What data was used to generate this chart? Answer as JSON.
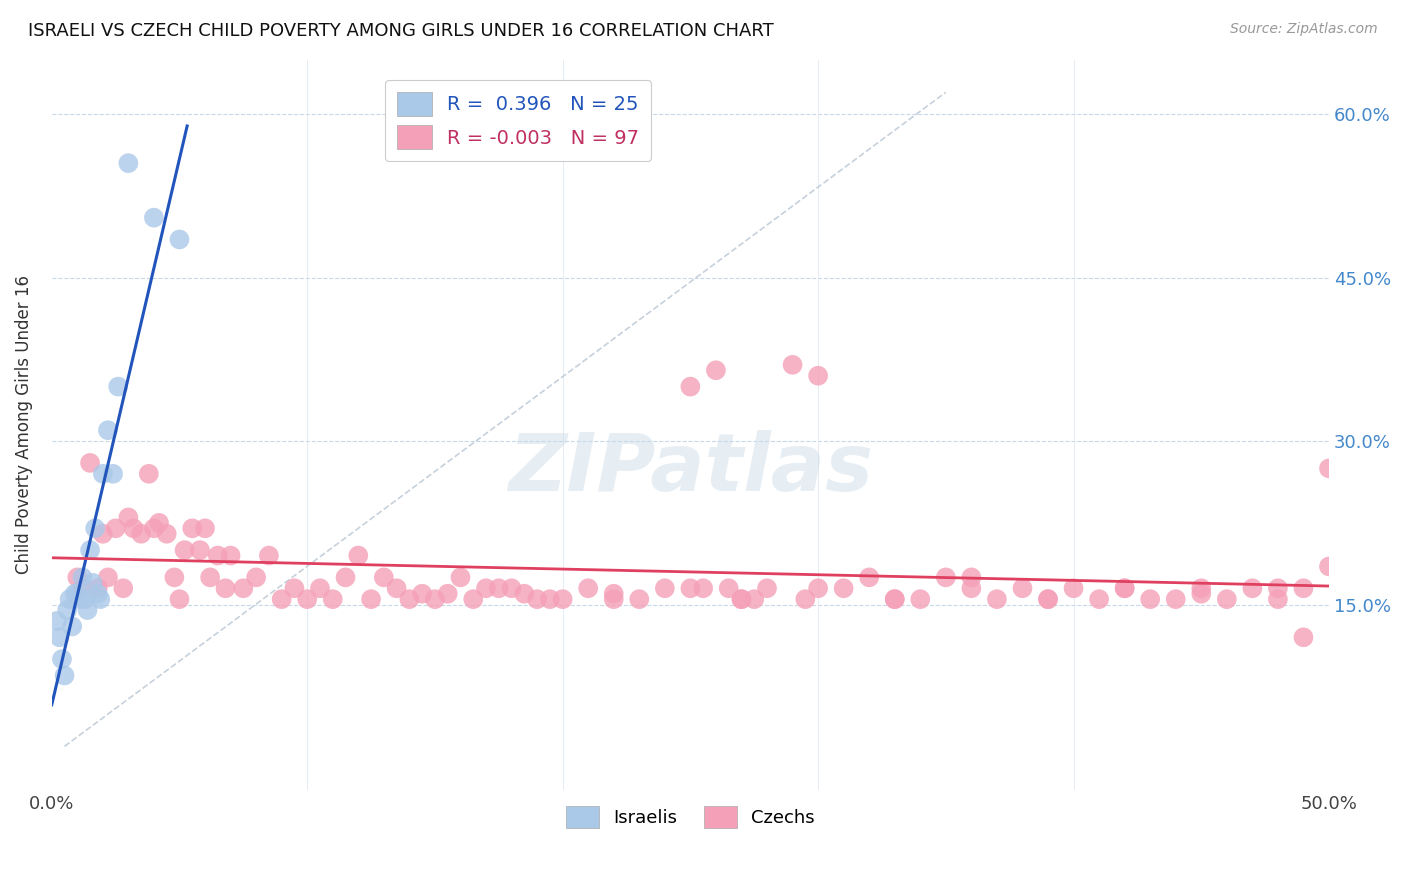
{
  "title": "ISRAELI VS CZECH CHILD POVERTY AMONG GIRLS UNDER 16 CORRELATION CHART",
  "source": "Source: ZipAtlas.com",
  "ylabel": "Child Poverty Among Girls Under 16",
  "xlim": [
    0.0,
    0.5
  ],
  "ylim": [
    -0.02,
    0.65
  ],
  "plot_ylim": [
    0.0,
    0.65
  ],
  "israeli_R": 0.396,
  "israeli_N": 25,
  "czech_R": -0.003,
  "czech_N": 97,
  "israeli_color": "#aac8e8",
  "czech_color": "#f4a0b8",
  "israeli_line_color": "#2255bb",
  "czech_line_color": "#e04060",
  "diag_line_color": "#c0ccd8",
  "watermark": "ZIPatlas",
  "israeli_x": [
    0.002,
    0.003,
    0.004,
    0.005,
    0.006,
    0.007,
    0.008,
    0.009,
    0.01,
    0.011,
    0.012,
    0.013,
    0.014,
    0.015,
    0.016,
    0.017,
    0.018,
    0.019,
    0.02,
    0.022,
    0.024,
    0.026,
    0.03,
    0.04,
    0.05
  ],
  "israeli_y": [
    0.135,
    0.12,
    0.1,
    0.085,
    0.145,
    0.155,
    0.13,
    0.16,
    0.16,
    0.155,
    0.175,
    0.155,
    0.145,
    0.2,
    0.17,
    0.22,
    0.16,
    0.155,
    0.27,
    0.31,
    0.27,
    0.35,
    0.555,
    0.505,
    0.485
  ],
  "czech_x": [
    0.01,
    0.012,
    0.015,
    0.018,
    0.02,
    0.022,
    0.025,
    0.028,
    0.03,
    0.032,
    0.035,
    0.038,
    0.04,
    0.042,
    0.045,
    0.048,
    0.05,
    0.052,
    0.055,
    0.058,
    0.06,
    0.062,
    0.065,
    0.068,
    0.07,
    0.075,
    0.08,
    0.085,
    0.09,
    0.095,
    0.1,
    0.105,
    0.11,
    0.115,
    0.12,
    0.125,
    0.13,
    0.135,
    0.14,
    0.145,
    0.15,
    0.155,
    0.16,
    0.165,
    0.17,
    0.175,
    0.18,
    0.185,
    0.19,
    0.195,
    0.2,
    0.21,
    0.22,
    0.23,
    0.24,
    0.25,
    0.255,
    0.26,
    0.265,
    0.27,
    0.275,
    0.28,
    0.29,
    0.295,
    0.3,
    0.31,
    0.32,
    0.33,
    0.34,
    0.35,
    0.36,
    0.37,
    0.38,
    0.39,
    0.4,
    0.41,
    0.42,
    0.43,
    0.44,
    0.45,
    0.46,
    0.47,
    0.48,
    0.49,
    0.5,
    0.22,
    0.25,
    0.27,
    0.3,
    0.33,
    0.36,
    0.39,
    0.42,
    0.45,
    0.48,
    0.5,
    0.49
  ],
  "czech_y": [
    0.175,
    0.165,
    0.28,
    0.165,
    0.215,
    0.175,
    0.22,
    0.165,
    0.23,
    0.22,
    0.215,
    0.27,
    0.22,
    0.225,
    0.215,
    0.175,
    0.155,
    0.2,
    0.22,
    0.2,
    0.22,
    0.175,
    0.195,
    0.165,
    0.195,
    0.165,
    0.175,
    0.195,
    0.155,
    0.165,
    0.155,
    0.165,
    0.155,
    0.175,
    0.195,
    0.155,
    0.175,
    0.165,
    0.155,
    0.16,
    0.155,
    0.16,
    0.175,
    0.155,
    0.165,
    0.165,
    0.165,
    0.16,
    0.155,
    0.155,
    0.155,
    0.165,
    0.16,
    0.155,
    0.165,
    0.35,
    0.165,
    0.365,
    0.165,
    0.155,
    0.155,
    0.165,
    0.37,
    0.155,
    0.36,
    0.165,
    0.175,
    0.155,
    0.155,
    0.175,
    0.165,
    0.155,
    0.165,
    0.155,
    0.165,
    0.155,
    0.165,
    0.155,
    0.155,
    0.165,
    0.155,
    0.165,
    0.155,
    0.165,
    0.275,
    0.155,
    0.165,
    0.155,
    0.165,
    0.155,
    0.175,
    0.155,
    0.165,
    0.16,
    0.165,
    0.185,
    0.12
  ]
}
